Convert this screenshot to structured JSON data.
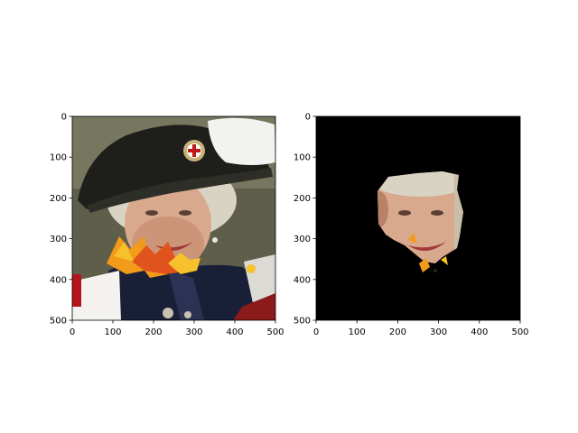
{
  "chart_data": [
    {
      "type": "image",
      "title": "",
      "xlabel": "",
      "ylabel": "",
      "xlim": [
        0,
        500
      ],
      "ylim": [
        500,
        0
      ],
      "xticks": [
        0,
        100,
        200,
        300,
        400,
        500
      ],
      "yticks": [
        0,
        100,
        200,
        300,
        400,
        500
      ],
      "xtick_labels": [
        "0",
        "100",
        "200",
        "300",
        "400",
        "500"
      ],
      "ytick_labels": [
        "0",
        "100",
        "200",
        "300",
        "400",
        "500"
      ],
      "image_content": "photo",
      "grid": false
    },
    {
      "type": "image",
      "title": "",
      "xlabel": "",
      "ylabel": "",
      "xlim": [
        0,
        500
      ],
      "ylim": [
        500,
        0
      ],
      "xticks": [
        0,
        100,
        200,
        300,
        400,
        500
      ],
      "yticks": [
        0,
        100,
        200,
        300,
        400,
        500
      ],
      "xtick_labels": [
        "0",
        "100",
        "200",
        "300",
        "400",
        "500"
      ],
      "ytick_labels": [
        "0",
        "100",
        "200",
        "300",
        "400",
        "500"
      ],
      "image_content": "masked photo",
      "background_color": "#000000",
      "grid": false
    }
  ],
  "colors": {
    "hat": "#1e1e1a",
    "feather": "#f2f2f0",
    "hair": "#d9d3c4",
    "skin": "#d8a98d",
    "skin_shadow": "#b98268",
    "leaf_orange": "#f29a1a",
    "leaf_red": "#e0531d",
    "leaf_yellow": "#f6c12a",
    "robe": "#1a1f38",
    "red_cloth": "#b4141c",
    "white_sleeve": "#f4f2ee",
    "background_photo": "#6b6a55",
    "mask_background": "#000000"
  }
}
